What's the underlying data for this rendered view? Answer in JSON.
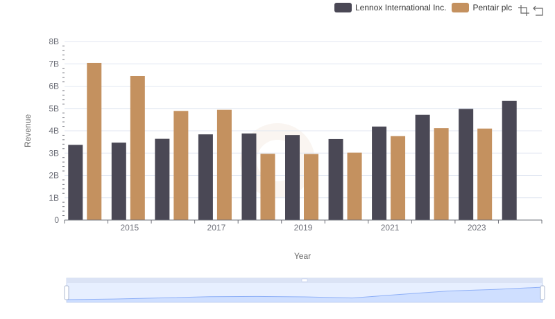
{
  "legend": [
    {
      "name": "Lennox International Inc.",
      "color": "#4a4855"
    },
    {
      "name": "Pentair plc",
      "color": "#c4915f"
    }
  ],
  "toolbox": {
    "icons": [
      "zoom-icon",
      "restore-icon"
    ]
  },
  "chart_data": {
    "type": "bar",
    "xlabel": "Year",
    "ylabel": "Revenue",
    "x": [
      2014,
      2015,
      2016,
      2017,
      2018,
      2019,
      2020,
      2021,
      2022,
      2023,
      2024
    ],
    "x_tick_labels": [
      "2015",
      "2017",
      "2019",
      "2021",
      "2023"
    ],
    "y_tick_labels": [
      "0",
      "1B",
      "2B",
      "3B",
      "4B",
      "5B",
      "6B",
      "7B",
      "8B"
    ],
    "ylim": [
      0,
      8000000000
    ],
    "grid": true,
    "legend_position": "top-right",
    "series": [
      {
        "name": "Lennox International Inc.",
        "color": "#4a4855",
        "values": [
          3370000000,
          3470000000,
          3640000000,
          3840000000,
          3880000000,
          3810000000,
          3630000000,
          4190000000,
          4720000000,
          4980000000,
          5340000000
        ]
      },
      {
        "name": "Pentair plc",
        "color": "#c4915f",
        "values": [
          7040000000,
          6450000000,
          4890000000,
          4940000000,
          2970000000,
          2960000000,
          3020000000,
          3760000000,
          4120000000,
          4100000000,
          null
        ]
      }
    ],
    "data_zoom": {
      "start_percent": 0,
      "end_percent": 100
    }
  }
}
